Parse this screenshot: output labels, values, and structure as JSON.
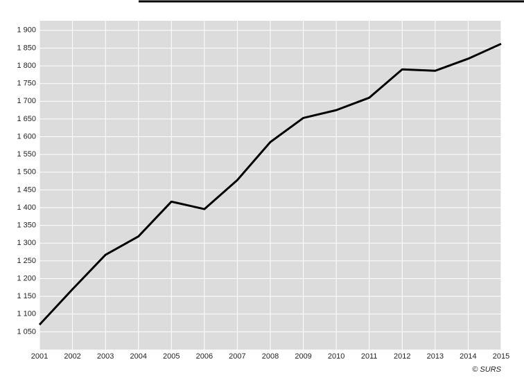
{
  "chart_data": {
    "type": "line",
    "x": [
      2001,
      2002,
      2003,
      2004,
      2005,
      2006,
      2007,
      2008,
      2009,
      2010,
      2011,
      2012,
      2013,
      2014,
      2015
    ],
    "series": [
      {
        "color": "#000000",
        "values": [
          1070,
          1170,
          1267,
          1319,
          1417,
          1396,
          1478,
          1585,
          1653,
          1675,
          1710,
          1790,
          1786,
          1820,
          1862
        ]
      }
    ],
    "xlim": [
      2001,
      2015
    ],
    "xticks": [
      2001,
      2002,
      2003,
      2004,
      2005,
      2006,
      2007,
      2008,
      2009,
      2010,
      2011,
      2012,
      2013,
      2014,
      2015
    ],
    "ylim": [
      1000,
      1927
    ],
    "yticks": [
      {
        "value": 1050,
        "label": "1 050"
      },
      {
        "value": 1100,
        "label": "1 100"
      },
      {
        "value": 1150,
        "label": "1 150"
      },
      {
        "value": 1200,
        "label": "1 200"
      },
      {
        "value": 1250,
        "label": "1 250"
      },
      {
        "value": 1300,
        "label": "1 300"
      },
      {
        "value": 1350,
        "label": "1 350"
      },
      {
        "value": 1400,
        "label": "1 400"
      },
      {
        "value": 1450,
        "label": "1 450"
      },
      {
        "value": 1500,
        "label": "1 500"
      },
      {
        "value": 1550,
        "label": "1 550"
      },
      {
        "value": 1600,
        "label": "1 600"
      },
      {
        "value": 1650,
        "label": "1 650"
      },
      {
        "value": 1700,
        "label": "1 700"
      },
      {
        "value": 1750,
        "label": "1 750"
      },
      {
        "value": 1800,
        "label": "1 800"
      },
      {
        "value": 1850,
        "label": "1 850"
      },
      {
        "value": 1900,
        "label": "1 900"
      }
    ],
    "grid": true,
    "background": "#dcdcdc",
    "source": "© SURS"
  }
}
